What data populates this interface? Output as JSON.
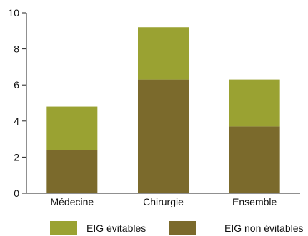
{
  "chart_data": {
    "type": "bar",
    "stacked": true,
    "categories": [
      "Médecine",
      "Chirurgie",
      "Ensemble"
    ],
    "series": [
      {
        "name": "EIG non évitables",
        "values": [
          2.4,
          6.3,
          3.7
        ]
      },
      {
        "name": "EIG évitables",
        "values": [
          2.4,
          2.9,
          2.6
        ]
      }
    ],
    "ylim": [
      0,
      10
    ],
    "yticks": [
      0,
      2,
      4,
      6,
      8,
      10
    ],
    "grid": false,
    "legend_position": "bottom",
    "colors": {
      "EIG évitables": "#9aa232",
      "EIG non évitables": "#7b6a2c"
    },
    "legend": [
      {
        "label": "EIG évitables",
        "color": "#9aa232"
      },
      {
        "label": "EIG non évitables",
        "color": "#7b6a2c"
      }
    ]
  }
}
